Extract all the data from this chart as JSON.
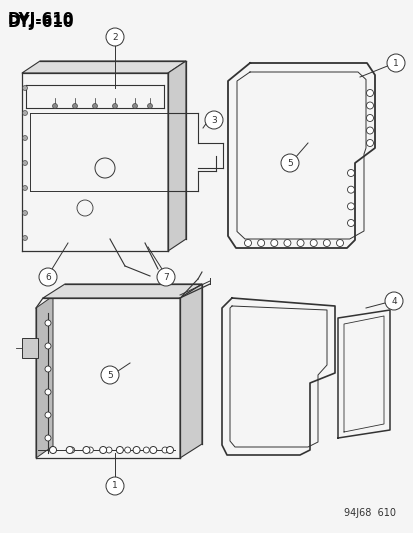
{
  "title": "DYJ–610",
  "footer": "94J68  610",
  "bg_color": "#f5f5f5",
  "title_fontsize": 11,
  "title_fontweight": "bold",
  "footer_fontsize": 7,
  "dc": "#333333",
  "lw": 0.9
}
